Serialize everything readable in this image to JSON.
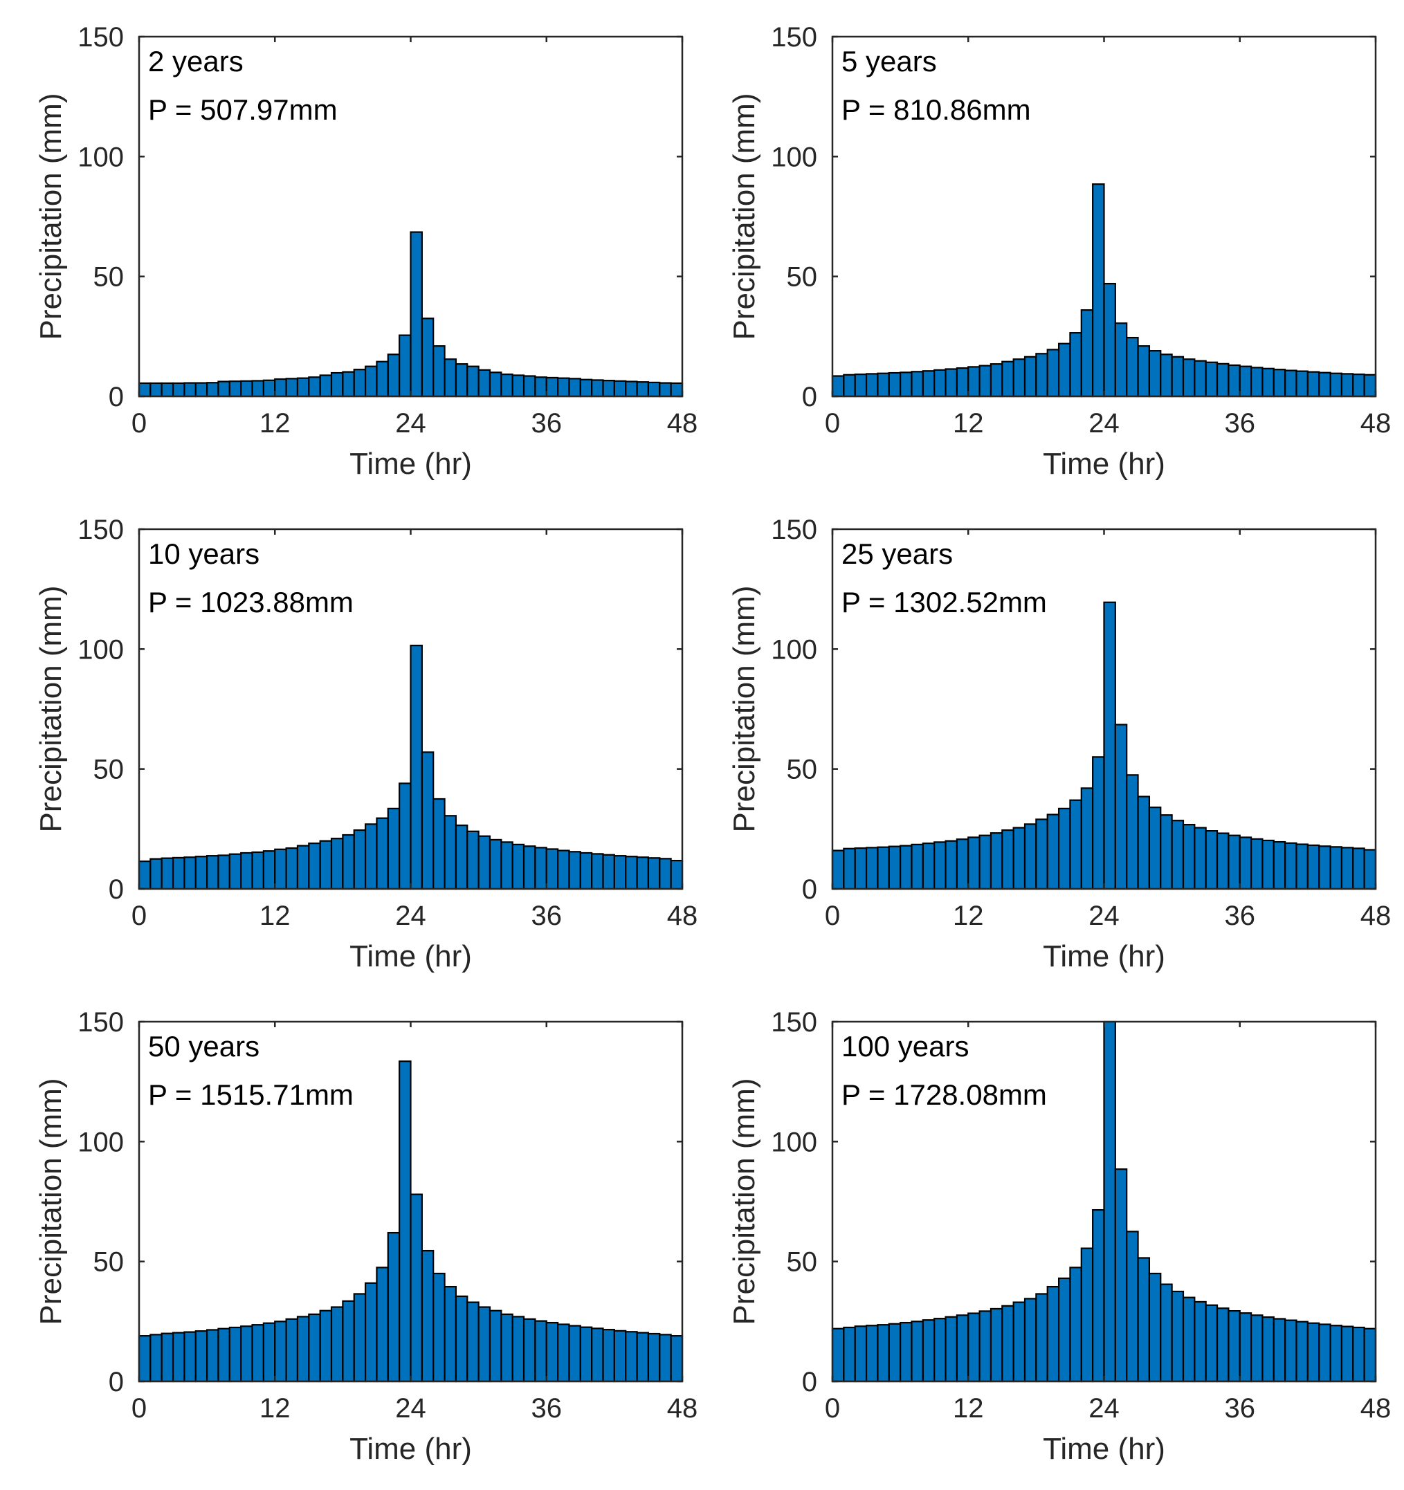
{
  "figure": {
    "colors": {
      "bar_fill": "#0072BD",
      "bar_edge": "#000000",
      "axis": "#262626",
      "text": "#262626"
    }
  },
  "chart_data": [
    {
      "type": "bar",
      "annotation_period": "2 years",
      "annotation_total": "P = 507.97mm",
      "xlabel": "Time (hr)",
      "ylabel": "Precipitation (mm)",
      "xlim": [
        0,
        48
      ],
      "ylim": [
        0,
        150
      ],
      "xticks": [
        "0",
        "12",
        "24",
        "36",
        "48"
      ],
      "yticks": [
        "0",
        "50",
        "100",
        "150"
      ],
      "x": [
        0.5,
        1.5,
        2.5,
        3.5,
        4.5,
        5.5,
        6.5,
        7.5,
        8.5,
        9.5,
        10.5,
        11.5,
        12.5,
        13.5,
        14.5,
        15.5,
        16.5,
        17.5,
        18.5,
        19.5,
        20.5,
        21.5,
        22.5,
        23.5,
        24.5,
        25.5,
        26.5,
        27.5,
        28.5,
        29.5,
        30.5,
        31.5,
        32.5,
        33.5,
        34.5,
        35.5,
        36.5,
        37.5,
        38.5,
        39.5,
        40.5,
        41.5,
        42.5,
        43.5,
        44.5,
        45.5,
        46.5,
        47.5
      ],
      "values": [
        5.5,
        5.5,
        5.5,
        5.5,
        5.6,
        5.6,
        5.7,
        6.2,
        6.3,
        6.4,
        6.5,
        6.7,
        7.2,
        7.4,
        7.6,
        8.0,
        8.8,
        9.8,
        10.2,
        11.2,
        12.5,
        14.5,
        17.5,
        25.5,
        68.5,
        32.5,
        21.0,
        15.5,
        13.5,
        12.5,
        11.0,
        10.0,
        9.2,
        8.8,
        8.5,
        8.0,
        7.8,
        7.6,
        7.4,
        7.0,
        6.8,
        6.6,
        6.4,
        6.2,
        6.0,
        5.8,
        5.6,
        5.5
      ]
    },
    {
      "type": "bar",
      "annotation_period": "5 years",
      "annotation_total": "P = 810.86mm",
      "xlabel": "Time (hr)",
      "ylabel": "Precipitation (mm)",
      "xlim": [
        0,
        48
      ],
      "ylim": [
        0,
        150
      ],
      "xticks": [
        "0",
        "12",
        "24",
        "36",
        "48"
      ],
      "yticks": [
        "0",
        "50",
        "100",
        "150"
      ],
      "x": [
        0.5,
        1.5,
        2.5,
        3.5,
        4.5,
        5.5,
        6.5,
        7.5,
        8.5,
        9.5,
        10.5,
        11.5,
        12.5,
        13.5,
        14.5,
        15.5,
        16.5,
        17.5,
        18.5,
        19.5,
        20.5,
        21.5,
        22.5,
        23.5,
        24.5,
        25.5,
        26.5,
        27.5,
        28.5,
        29.5,
        30.5,
        31.5,
        32.5,
        33.5,
        34.5,
        35.5,
        36.5,
        37.5,
        38.5,
        39.5,
        40.5,
        41.5,
        42.5,
        43.5,
        44.5,
        45.5,
        46.5,
        47.5
      ],
      "values": [
        8.5,
        9.0,
        9.2,
        9.4,
        9.6,
        9.8,
        10.0,
        10.3,
        10.6,
        11.0,
        11.4,
        11.8,
        12.3,
        12.8,
        13.5,
        14.5,
        15.5,
        16.5,
        17.8,
        19.5,
        22.0,
        26.5,
        36.0,
        88.5,
        47.0,
        30.5,
        24.5,
        21.0,
        19.0,
        17.5,
        16.5,
        15.5,
        14.8,
        14.2,
        13.6,
        13.0,
        12.5,
        12.0,
        11.6,
        11.2,
        10.8,
        10.5,
        10.2,
        9.9,
        9.6,
        9.4,
        9.2,
        9.0
      ]
    },
    {
      "type": "bar",
      "annotation_period": "10 years",
      "annotation_total": "P = 1023.88mm",
      "xlabel": "Time (hr)",
      "ylabel": "Precipitation (mm)",
      "xlim": [
        0,
        48
      ],
      "ylim": [
        0,
        150
      ],
      "xticks": [
        "0",
        "12",
        "24",
        "36",
        "48"
      ],
      "yticks": [
        "0",
        "50",
        "100",
        "150"
      ],
      "x": [
        0.5,
        1.5,
        2.5,
        3.5,
        4.5,
        5.5,
        6.5,
        7.5,
        8.5,
        9.5,
        10.5,
        11.5,
        12.5,
        13.5,
        14.5,
        15.5,
        16.5,
        17.5,
        18.5,
        19.5,
        20.5,
        21.5,
        22.5,
        23.5,
        24.5,
        25.5,
        26.5,
        27.5,
        28.5,
        29.5,
        30.5,
        31.5,
        32.5,
        33.5,
        34.5,
        35.5,
        36.5,
        37.5,
        38.5,
        39.5,
        40.5,
        41.5,
        42.5,
        43.5,
        44.5,
        45.5,
        46.5,
        47.5
      ],
      "values": [
        11.5,
        12.5,
        12.8,
        13.0,
        13.2,
        13.5,
        13.8,
        14.0,
        14.5,
        15.0,
        15.3,
        15.8,
        16.5,
        17.0,
        18.0,
        19.0,
        20.0,
        21.0,
        22.5,
        24.5,
        27.0,
        29.5,
        33.5,
        44.0,
        101.5,
        57.0,
        37.5,
        30.5,
        26.5,
        24.0,
        22.0,
        20.5,
        19.5,
        18.5,
        17.8,
        17.2,
        16.6,
        16.0,
        15.5,
        15.0,
        14.6,
        14.2,
        13.8,
        13.5,
        13.2,
        12.9,
        12.6,
        11.8
      ]
    },
    {
      "type": "bar",
      "annotation_period": "25 years",
      "annotation_total": "P = 1302.52mm",
      "xlabel": "Time (hr)",
      "ylabel": "Precipitation (mm)",
      "xlim": [
        0,
        48
      ],
      "ylim": [
        0,
        150
      ],
      "xticks": [
        "0",
        "12",
        "24",
        "36",
        "48"
      ],
      "yticks": [
        "0",
        "50",
        "100",
        "150"
      ],
      "x": [
        0.5,
        1.5,
        2.5,
        3.5,
        4.5,
        5.5,
        6.5,
        7.5,
        8.5,
        9.5,
        10.5,
        11.5,
        12.5,
        13.5,
        14.5,
        15.5,
        16.5,
        17.5,
        18.5,
        19.5,
        20.5,
        21.5,
        22.5,
        23.5,
        24.5,
        25.5,
        26.5,
        27.5,
        28.5,
        29.5,
        30.5,
        31.5,
        32.5,
        33.5,
        34.5,
        35.5,
        36.5,
        37.5,
        38.5,
        39.5,
        40.5,
        41.5,
        42.5,
        43.5,
        44.5,
        45.5,
        46.5,
        47.5
      ],
      "values": [
        16.0,
        16.8,
        17.0,
        17.2,
        17.4,
        17.7,
        18.0,
        18.5,
        19.0,
        19.5,
        20.0,
        20.7,
        21.5,
        22.3,
        23.3,
        24.5,
        25.5,
        27.0,
        29.0,
        31.0,
        33.5,
        37.0,
        42.0,
        55.0,
        119.5,
        68.5,
        47.5,
        38.5,
        34.0,
        30.8,
        28.5,
        26.8,
        25.5,
        24.2,
        23.2,
        22.3,
        21.5,
        20.8,
        20.2,
        19.6,
        19.1,
        18.6,
        18.2,
        17.8,
        17.5,
        17.2,
        16.9,
        16.3
      ]
    },
    {
      "type": "bar",
      "annotation_period": "50 years",
      "annotation_total": "P = 1515.71mm",
      "xlabel": "Time (hr)",
      "ylabel": "Precipitation (mm)",
      "xlim": [
        0,
        48
      ],
      "ylim": [
        0,
        150
      ],
      "xticks": [
        "0",
        "12",
        "24",
        "36",
        "48"
      ],
      "yticks": [
        "0",
        "50",
        "100",
        "150"
      ],
      "x": [
        0.5,
        1.5,
        2.5,
        3.5,
        4.5,
        5.5,
        6.5,
        7.5,
        8.5,
        9.5,
        10.5,
        11.5,
        12.5,
        13.5,
        14.5,
        15.5,
        16.5,
        17.5,
        18.5,
        19.5,
        20.5,
        21.5,
        22.5,
        23.5,
        24.5,
        25.5,
        26.5,
        27.5,
        28.5,
        29.5,
        30.5,
        31.5,
        32.5,
        33.5,
        34.5,
        35.5,
        36.5,
        37.5,
        38.5,
        39.5,
        40.5,
        41.5,
        42.5,
        43.5,
        44.5,
        45.5,
        46.5,
        47.5
      ],
      "values": [
        19.0,
        19.5,
        20.0,
        20.3,
        20.6,
        21.0,
        21.5,
        22.0,
        22.5,
        23.0,
        23.6,
        24.3,
        25.0,
        26.0,
        27.0,
        28.0,
        29.5,
        31.0,
        33.5,
        36.5,
        41.0,
        47.5,
        62.0,
        133.5,
        78.0,
        54.5,
        45.0,
        39.5,
        35.5,
        33.0,
        31.0,
        29.5,
        28.0,
        27.0,
        26.0,
        25.2,
        24.5,
        23.8,
        23.2,
        22.6,
        22.1,
        21.6,
        21.1,
        20.7,
        20.3,
        19.9,
        19.5,
        19.0
      ]
    },
    {
      "type": "bar",
      "annotation_period": "100 years",
      "annotation_total": "P = 1728.08mm",
      "xlabel": "Time (hr)",
      "ylabel": "Precipitation (mm)",
      "xlim": [
        0,
        48
      ],
      "ylim": [
        0,
        150
      ],
      "xticks": [
        "0",
        "12",
        "24",
        "36",
        "48"
      ],
      "yticks": [
        "0",
        "50",
        "100",
        "150"
      ],
      "x": [
        0.5,
        1.5,
        2.5,
        3.5,
        4.5,
        5.5,
        6.5,
        7.5,
        8.5,
        9.5,
        10.5,
        11.5,
        12.5,
        13.5,
        14.5,
        15.5,
        16.5,
        17.5,
        18.5,
        19.5,
        20.5,
        21.5,
        22.5,
        23.5,
        24.5,
        25.5,
        26.5,
        27.5,
        28.5,
        29.5,
        30.5,
        31.5,
        32.5,
        33.5,
        34.5,
        35.5,
        36.5,
        37.5,
        38.5,
        39.5,
        40.5,
        41.5,
        42.5,
        43.5,
        44.5,
        45.5,
        46.5,
        47.5
      ],
      "values": [
        22.0,
        22.5,
        23.0,
        23.3,
        23.6,
        24.0,
        24.5,
        25.0,
        25.6,
        26.2,
        26.9,
        27.6,
        28.4,
        29.3,
        30.3,
        31.5,
        33.0,
        34.5,
        36.5,
        39.5,
        43.0,
        47.5,
        55.5,
        71.5,
        150.0,
        88.5,
        62.5,
        51.5,
        45.0,
        40.5,
        37.5,
        35.0,
        33.2,
        31.8,
        30.5,
        29.4,
        28.5,
        27.6,
        26.8,
        26.1,
        25.5,
        24.9,
        24.3,
        23.8,
        23.3,
        22.9,
        22.5,
        22.0
      ]
    }
  ]
}
